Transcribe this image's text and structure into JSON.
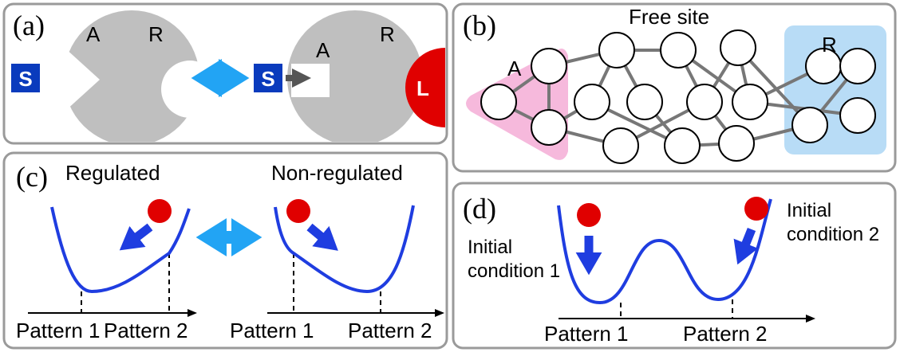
{
  "panel_a": {
    "label": "(a)",
    "left": {
      "allosteric": "A",
      "regulatory": "R",
      "substrate": "S"
    },
    "right": {
      "allosteric": "A",
      "regulatory": "R",
      "substrate": "S",
      "ligand": "L"
    }
  },
  "panel_b": {
    "label": "(b)",
    "free_site": "Free site",
    "allosteric": "A",
    "regulatory": "R"
  },
  "panel_c": {
    "label": "(c)",
    "regulated": {
      "title": "Regulated",
      "pattern_1": "Pattern 1",
      "pattern_2": "Pattern 2"
    },
    "non_regulated": {
      "title": "Non-regulated",
      "pattern_1": "Pattern 1",
      "pattern_2": "Pattern 2"
    }
  },
  "panel_d": {
    "label": "(d)",
    "initial_1": [
      "Initial",
      "condition 1"
    ],
    "initial_2": [
      "Initial",
      "condition 2"
    ],
    "pattern_1": "Pattern 1",
    "pattern_2": "Pattern 2"
  }
}
